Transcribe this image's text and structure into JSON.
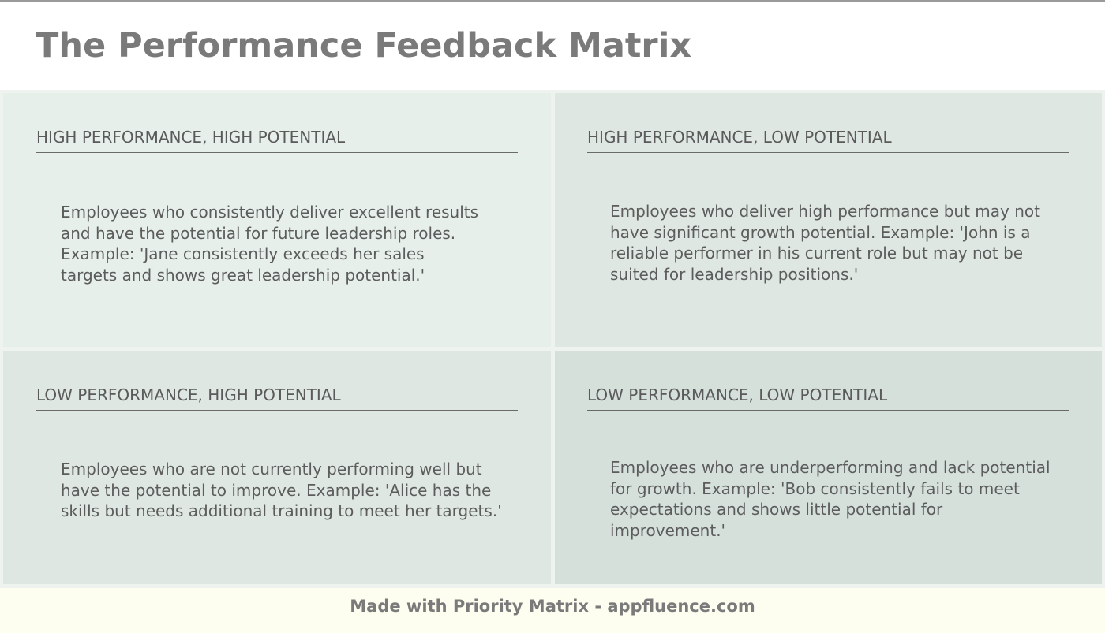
{
  "title": "The Performance Feedback Matrix",
  "quadrants": [
    {
      "heading": "HIGH PERFORMANCE, HIGH POTENTIAL",
      "description": "Employees who consistently deliver excellent results and have the potential for future leadership roles. Example: 'Jane consistently exceeds her sales targets and shows great leadership potential.'",
      "color": "#e6efea"
    },
    {
      "heading": "HIGH PERFORMANCE, LOW POTENTIAL",
      "description": "Employees who deliver high performance but may not have significant growth potential. Example: 'John is a reliable performer in his current role but may not be suited for leadership positions.'",
      "color": "#dee7e1"
    },
    {
      "heading": "LOW PERFORMANCE, HIGH POTENTIAL",
      "description": "Employees who are not currently performing well but have the potential to improve. Example: 'Alice has the skills but needs additional training to meet her targets.'",
      "color": "#dee7e1"
    },
    {
      "heading": "LOW PERFORMANCE, LOW POTENTIAL",
      "description": "Employees who are underperforming and lack potential for growth. Example: 'Bob consistently fails to meet expectations and shows little potential for improvement.'",
      "color": "#d5e0db"
    }
  ],
  "footer": {
    "text": "Made with Priority Matrix - appfluence.com"
  },
  "colors": {
    "title": "#7a7a7a",
    "footer_background": "#fdfdf0",
    "divider": "#6a6a6a"
  }
}
